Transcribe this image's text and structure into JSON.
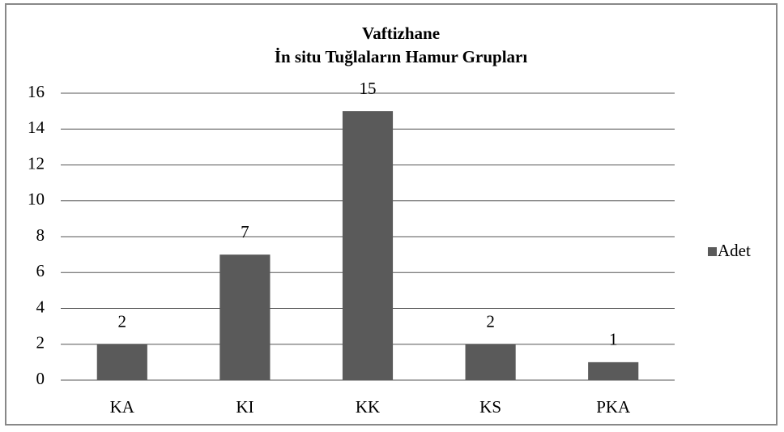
{
  "chart_data": {
    "type": "bar",
    "title": [
      "Vaftizhane",
      "İn situ Tuğlaların Hamur Grupları"
    ],
    "categories": [
      "KA",
      "KI",
      "KK",
      "KS",
      "PKA"
    ],
    "series": [
      {
        "name": "Adet",
        "color": "#5a5a5a",
        "values": [
          2,
          7,
          15,
          2,
          1
        ]
      }
    ],
    "ylim": [
      0,
      16
    ],
    "yticks": [
      0,
      2,
      4,
      6,
      8,
      10,
      12,
      14,
      16
    ],
    "grid": true,
    "legend": "right",
    "data_labels": true
  }
}
